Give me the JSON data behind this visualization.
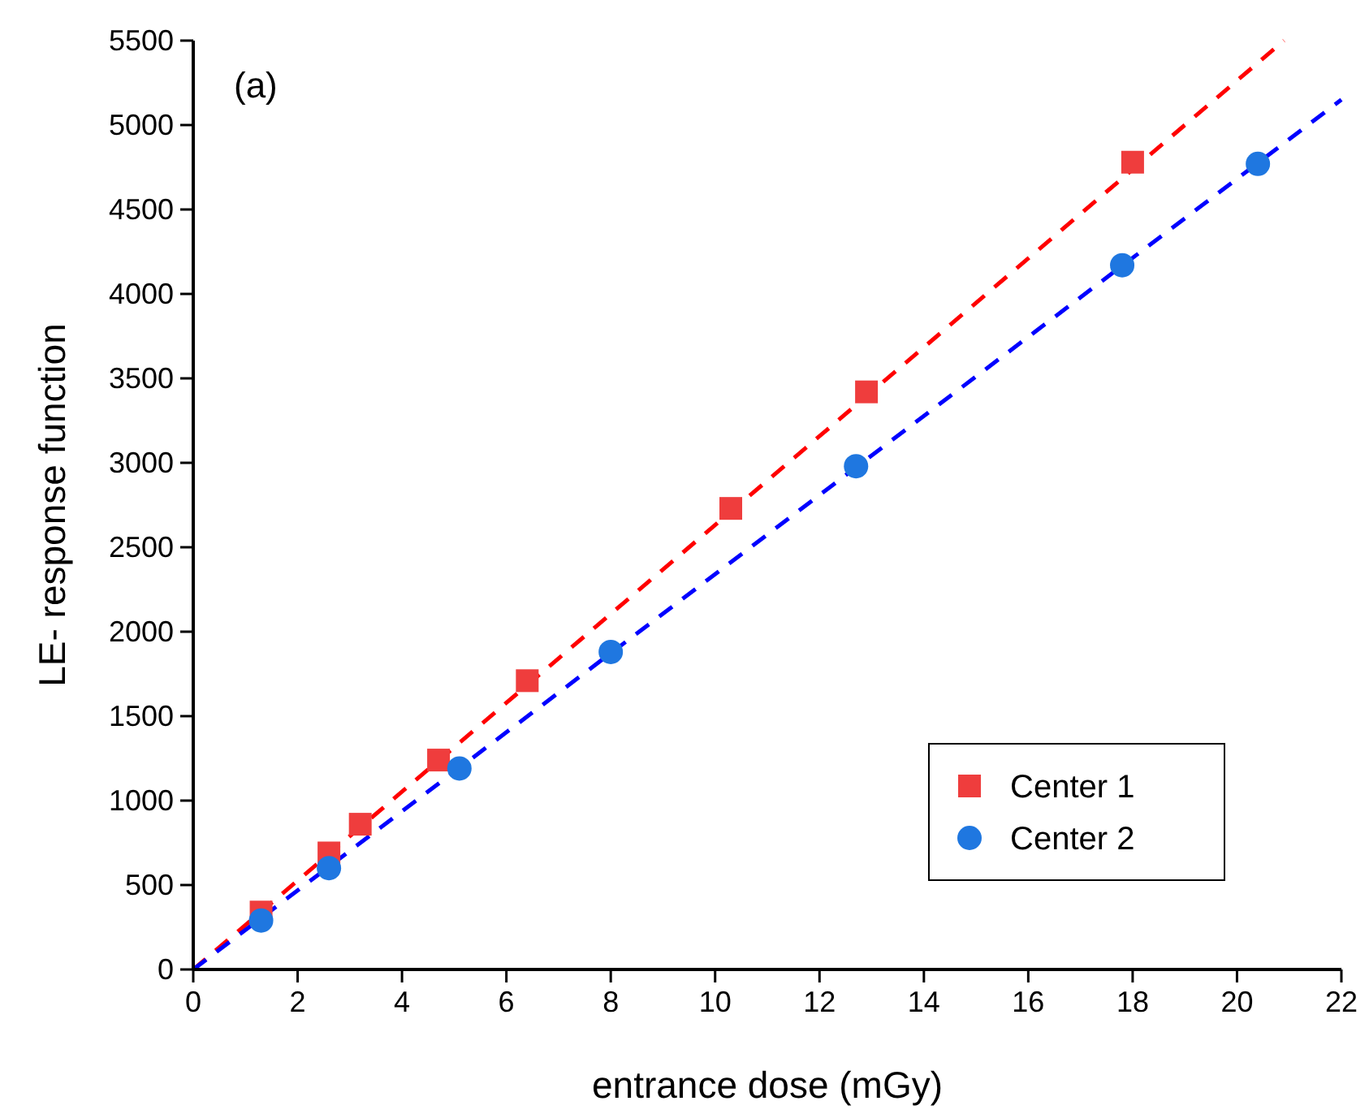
{
  "chart_data": {
    "type": "scatter",
    "xlabel": "entrance dose (mGy)",
    "ylabel": "LE- response function",
    "annotations": [
      "(a)"
    ],
    "xlim": [
      0,
      22
    ],
    "xticks": [
      0,
      2,
      4,
      6,
      8,
      10,
      12,
      14,
      16,
      18,
      20,
      22
    ],
    "ylim": [
      0,
      5500
    ],
    "yticks": [
      0,
      500,
      1000,
      1500,
      2000,
      2500,
      3000,
      3500,
      4000,
      4500,
      5000,
      5500
    ],
    "grid": false,
    "legend": "bottom right",
    "series": [
      {
        "name": "Center 1",
        "marker": "square",
        "color": "#ef3d3d",
        "x": [
          1.3,
          2.6,
          3.2,
          4.7,
          6.4,
          10.3,
          12.9,
          18.0
        ],
        "values": [
          340,
          690,
          860,
          1240,
          1710,
          2730,
          3420,
          4780
        ]
      },
      {
        "name": "Center 2",
        "marker": "circle",
        "color": "#1f77e0",
        "x": [
          1.3,
          2.6,
          5.1,
          8.0,
          12.7,
          17.8,
          20.4
        ],
        "values": [
          290,
          600,
          1190,
          1880,
          2980,
          4170,
          4770
        ]
      },
      {
        "type": "line",
        "line_style": "dashed",
        "marker": "none",
        "color": "#ff0000",
        "x": [
          0,
          20.9
        ],
        "values": [
          0,
          5500
        ]
      },
      {
        "type": "line",
        "line_style": "dashed",
        "marker": "none",
        "color": "#0000ff",
        "x": [
          0,
          22
        ],
        "values": [
          0,
          5150
        ]
      }
    ]
  }
}
